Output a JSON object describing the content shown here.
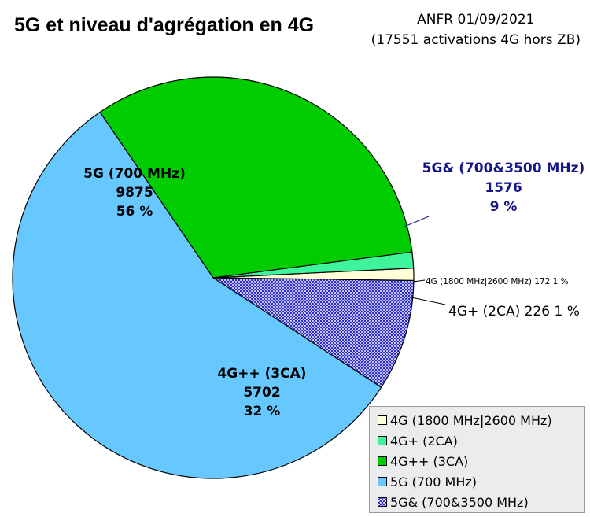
{
  "header": {
    "title": "5G et niveau d'agrégation en 4G",
    "source_line1": "ANFR 01/09/2021",
    "source_line2": "(17551 activations 4G hors ZB)"
  },
  "chart_data": {
    "type": "pie",
    "title": "5G et niveau d'agrégation en 4G",
    "total": 17551,
    "slices": [
      {
        "label": "5G& (700&3500 MHz)",
        "value": 1576,
        "percent": "9 %",
        "color": "#1c1ccc",
        "fill": "hatched",
        "label_color": "#15158a"
      },
      {
        "label": "4G (1800 MHz|2600 MHz)",
        "value": 172,
        "percent": "1 %",
        "color": "#ffffd8",
        "fill": "solid",
        "label_color": "#000000"
      },
      {
        "label": "4G+ (2CA)",
        "value": 226,
        "percent": "1 %",
        "color": "#3ef59c",
        "fill": "solid",
        "label_color": "#000000"
      },
      {
        "label": "4G++ (3CA)",
        "value": 5702,
        "percent": "32 %",
        "color": "#00cc00",
        "fill": "solid",
        "label_color": "#000000"
      },
      {
        "label": "5G (700 MHz)",
        "value": 9875,
        "percent": "56 %",
        "color": "#66c8ff",
        "fill": "solid",
        "label_color": "#000000"
      }
    ],
    "legend": {
      "placement": "bottom-right",
      "items": [
        {
          "label": "4G (1800 MHz|2600 MHz)",
          "color": "#ffffd8",
          "fill": "solid"
        },
        {
          "label": "4G+ (2CA)",
          "color": "#3ef59c",
          "fill": "solid"
        },
        {
          "label": "4G++ (3CA)",
          "color": "#00cc00",
          "fill": "solid"
        },
        {
          "label": "5G (700 MHz)",
          "color": "#66c8ff",
          "fill": "solid"
        },
        {
          "label": "5G& (700&3500 MHz)",
          "color": "#1c1ccc",
          "fill": "hatched"
        }
      ]
    }
  }
}
